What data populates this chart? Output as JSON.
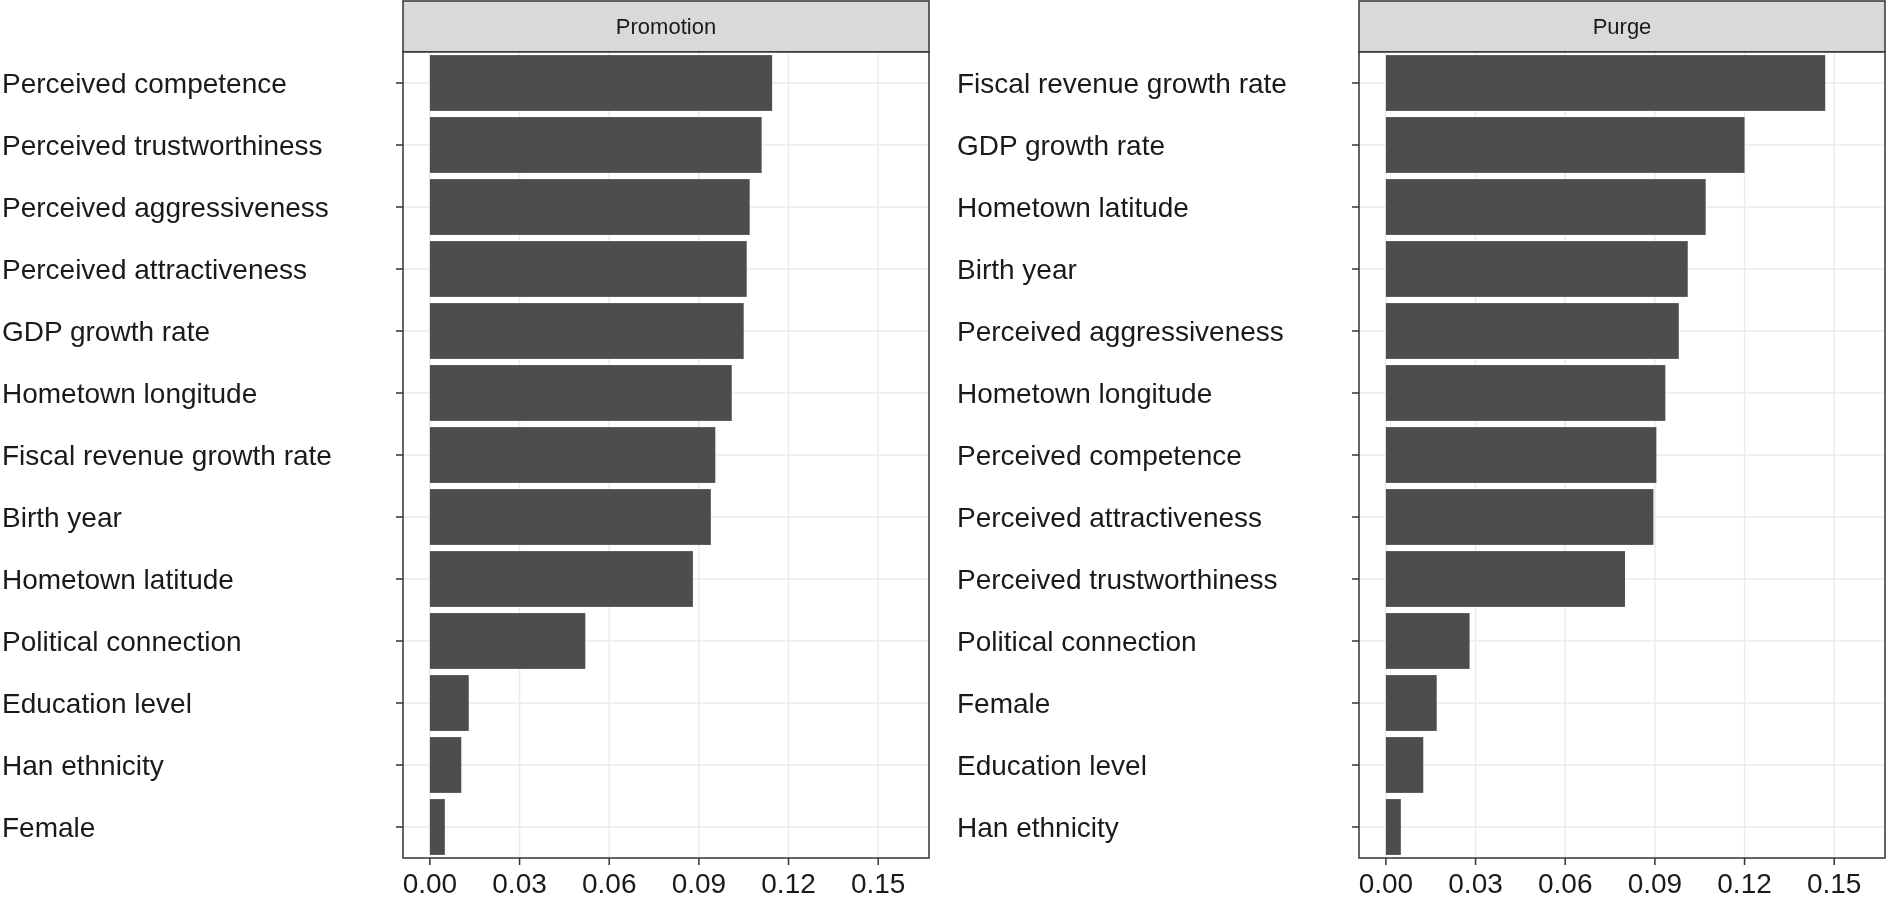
{
  "chart_data": [
    {
      "type": "bar",
      "orientation": "horizontal",
      "title": "Promotion",
      "categories": [
        "Perceived competence",
        "Perceived trustworthiness",
        "Perceived aggressiveness",
        "Perceived attractiveness",
        "GDP growth rate",
        "Hometown longitude",
        "Fiscal revenue growth rate",
        "Birth year",
        "Hometown latitude",
        "Political connection",
        "Education level",
        "Han ethnicity",
        "Female"
      ],
      "values": [
        0.1145,
        0.111,
        0.107,
        0.106,
        0.105,
        0.101,
        0.0955,
        0.094,
        0.088,
        0.052,
        0.013,
        0.0105,
        0.005
      ],
      "color": "#4d4d4d",
      "xlim": [
        -0.009,
        0.167
      ],
      "xticks": [
        {
          "value": 0,
          "label": "0.00"
        },
        0.03,
        0.06,
        0.09,
        0.12,
        0.15
      ],
      "grid": true
    },
    {
      "type": "bar",
      "orientation": "horizontal",
      "title": "Purge",
      "categories": [
        "Fiscal revenue growth rate",
        "GDP growth rate",
        "Hometown latitude",
        "Birth year",
        "Perceived aggressiveness",
        "Hometown longitude",
        "Perceived competence",
        "Perceived attractiveness",
        "Perceived trustworthiness",
        "Political connection",
        "Female",
        "Education level",
        "Han ethnicity"
      ],
      "values": [
        0.147,
        0.12,
        0.107,
        0.101,
        0.098,
        0.0935,
        0.0905,
        0.0895,
        0.08,
        0.028,
        0.017,
        0.0125,
        0.005
      ],
      "color": "#4d4d4d",
      "xlim": [
        -0.009,
        0.167
      ],
      "xticks": [
        {
          "value": 0,
          "label": "0.00"
        },
        0.03,
        0.06,
        0.09,
        0.12,
        0.15
      ],
      "grid": true
    }
  ]
}
